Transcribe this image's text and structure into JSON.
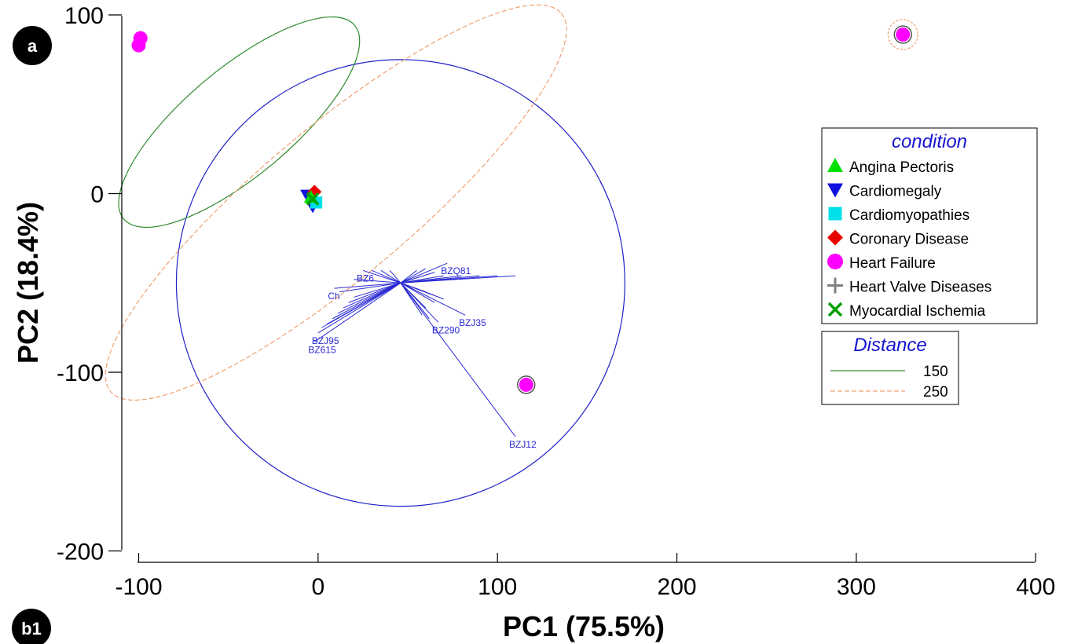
{
  "panel_labels": {
    "top": "a",
    "bottom": "b1"
  },
  "chart_data": {
    "type": "scatter",
    "title": "",
    "xlabel": "PC1 (75.5%)",
    "ylabel": "PC2 (18.4%)",
    "xlim": [
      -110,
      400
    ],
    "ylim": [
      -200,
      100
    ],
    "x_ticks": [
      -100,
      0,
      100,
      200,
      300,
      400
    ],
    "x_tick_labels": [
      "-100",
      "0",
      "100",
      "200",
      "300",
      "400"
    ],
    "y_ticks": [
      -200,
      -100,
      0,
      100
    ],
    "y_tick_labels": [
      "-200",
      "-100",
      "0",
      "100"
    ],
    "grid": false,
    "legend_placement": "right",
    "legend": {
      "title": "condition",
      "entries": [
        {
          "name": "Angina Pectoris",
          "marker": "triangle-up",
          "color": "#00e000"
        },
        {
          "name": "Cardiomegaly",
          "marker": "triangle-down",
          "color": "#1010e0"
        },
        {
          "name": "Cardiomyopathies",
          "marker": "square",
          "color": "#00e0e8"
        },
        {
          "name": "Coronary Disease",
          "marker": "diamond",
          "color": "#e80000"
        },
        {
          "name": "Heart Failure",
          "marker": "circle",
          "color": "#ff00ff"
        },
        {
          "name": "Heart Valve Diseases",
          "marker": "plus",
          "color": "#808080"
        },
        {
          "name": "Myocardial Ischemia",
          "marker": "x",
          "color": "#00a000"
        }
      ]
    },
    "distance_legend": {
      "title": "Distance",
      "entries": [
        {
          "name": "150",
          "style": "solid",
          "color": "#2e8b2e"
        },
        {
          "name": "250",
          "style": "dashed",
          "color": "#f0a070"
        }
      ]
    },
    "series": [
      {
        "name": "Heart Failure",
        "marker": "circle",
        "color": "#ff00ff",
        "points": [
          [
            -99,
            87
          ],
          [
            -100,
            83
          ],
          [
            326,
            89
          ],
          [
            116,
            -107
          ]
        ]
      },
      {
        "name": "Cardiomegaly",
        "marker": "triangle-down",
        "color": "#1010e0",
        "points": [
          [
            -3,
            -7
          ],
          [
            -6,
            -1
          ]
        ]
      },
      {
        "name": "Cardiomyopathies",
        "marker": "square",
        "color": "#00e0e8",
        "points": [
          [
            -1,
            -5
          ]
        ]
      },
      {
        "name": "Coronary Disease",
        "marker": "diamond",
        "color": "#e80000",
        "points": [
          [
            -2,
            1
          ]
        ]
      },
      {
        "name": "Angina Pectoris",
        "marker": "triangle-up",
        "color": "#00e000",
        "points": [
          [
            -4,
            -2
          ]
        ]
      },
      {
        "name": "Myocardial Ischemia",
        "marker": "x",
        "color": "#00a000",
        "points": [
          [
            -3,
            -3
          ]
        ]
      }
    ],
    "highlight_rings": [
      [
        326,
        89
      ],
      [
        116,
        -107
      ]
    ],
    "circle": {
      "center": [
        46,
        -50
      ],
      "radius": 125,
      "color": "#2020c8"
    },
    "ellipses": [
      {
        "name": "150",
        "center": [
          -44,
          40
        ],
        "semi_major": 84,
        "semi_minor": 30,
        "angle_deg": -40,
        "color": "#2e8b2e",
        "dash": ""
      },
      {
        "name": "250",
        "center": [
          10,
          -5
        ],
        "semi_major": 164,
        "semi_minor": 42,
        "angle_deg": -40,
        "color": "#f0a070",
        "dash": "6,3"
      }
    ],
    "satellite_circle": {
      "center": [
        326,
        89
      ],
      "radius": 5,
      "color": "#f0a070",
      "dash": "3,2"
    },
    "biplot": {
      "origin": [
        46,
        -50
      ],
      "color": "#2a2ad4",
      "vectors": [
        {
          "label": "BZQ81",
          "end": [
            72,
            -39
          ]
        },
        {
          "label": "BZ6",
          "end": [
            25,
            -43
          ]
        },
        {
          "label": "Ch",
          "end": [
            9,
            -53
          ]
        },
        {
          "label": "BZJ95",
          "end": [
            0,
            -78
          ]
        },
        {
          "label": "BZ615",
          "end": [
            -2,
            -83
          ]
        },
        {
          "label": "BZJ35",
          "end": [
            82,
            -68
          ]
        },
        {
          "label": "BZ290",
          "end": [
            67,
            -72
          ]
        },
        {
          "label": "BZJ12",
          "end": [
            110,
            -136
          ]
        },
        {
          "label": "",
          "end": [
            2,
            -75
          ]
        },
        {
          "label": "",
          "end": [
            5,
            -73
          ]
        },
        {
          "label": "",
          "end": [
            8,
            -70
          ]
        },
        {
          "label": "",
          "end": [
            11,
            -67
          ]
        },
        {
          "label": "",
          "end": [
            14,
            -64
          ]
        },
        {
          "label": "",
          "end": [
            17,
            -61
          ]
        },
        {
          "label": "",
          "end": [
            20,
            -58
          ]
        },
        {
          "label": "",
          "end": [
            12,
            -55
          ]
        },
        {
          "label": "",
          "end": [
            20,
            -48
          ]
        },
        {
          "label": "",
          "end": [
            30,
            -43
          ]
        },
        {
          "label": "",
          "end": [
            35,
            -43
          ]
        },
        {
          "label": "",
          "end": [
            40,
            -43
          ]
        },
        {
          "label": "",
          "end": [
            55,
            -43
          ]
        },
        {
          "label": "",
          "end": [
            60,
            -42
          ]
        },
        {
          "label": "",
          "end": [
            65,
            -44
          ]
        },
        {
          "label": "",
          "end": [
            70,
            -46
          ]
        },
        {
          "label": "",
          "end": [
            80,
            -46
          ]
        },
        {
          "label": "",
          "end": [
            90,
            -46
          ]
        },
        {
          "label": "",
          "end": [
            100,
            -46
          ]
        },
        {
          "label": "",
          "end": [
            110,
            -46
          ]
        },
        {
          "label": "",
          "end": [
            60,
            -55
          ]
        },
        {
          "label": "",
          "end": [
            65,
            -57
          ]
        },
        {
          "label": "",
          "end": [
            70,
            -59
          ]
        },
        {
          "label": "",
          "end": [
            65,
            -61
          ]
        },
        {
          "label": "",
          "end": [
            60,
            -64
          ]
        },
        {
          "label": "",
          "end": [
            58,
            -68
          ]
        },
        {
          "label": "",
          "end": [
            62,
            -70
          ]
        }
      ]
    }
  }
}
